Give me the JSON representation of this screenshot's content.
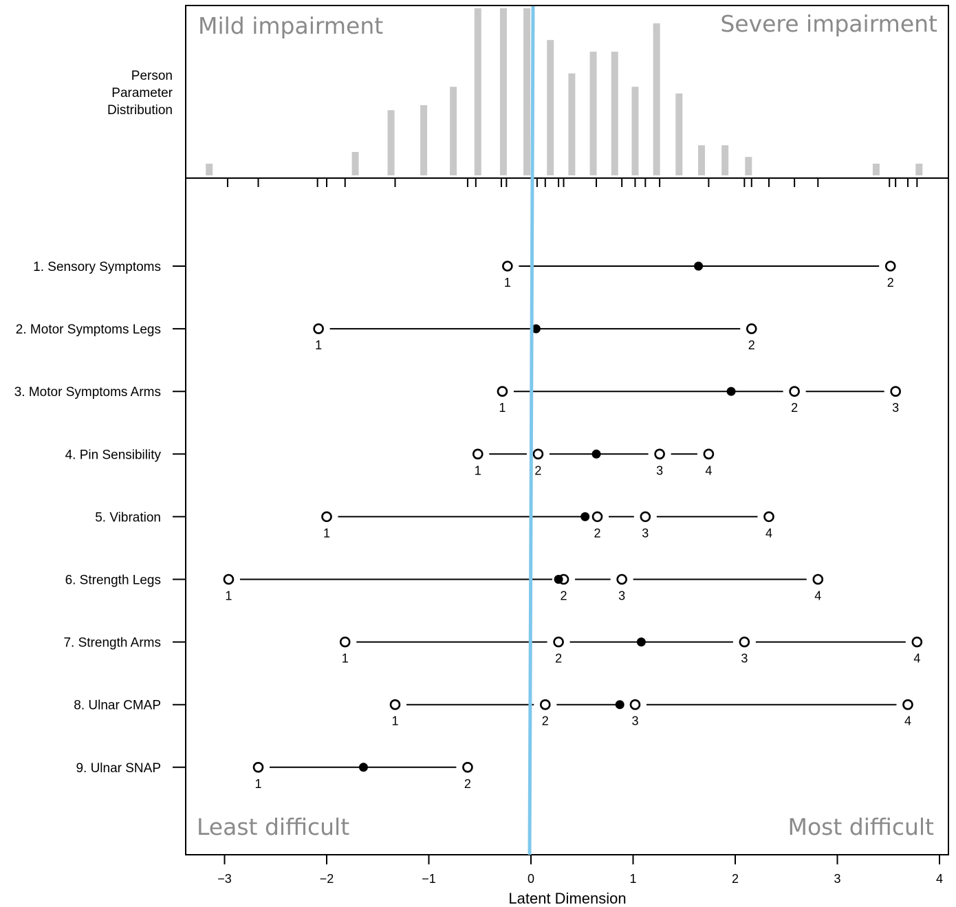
{
  "chart_data": {
    "type": "scatter",
    "title": "",
    "xlabel": "Latent Dimension",
    "xlim": [
      -3.4,
      4.1
    ],
    "x_ticks": [
      -3,
      -2,
      -1,
      0,
      1,
      2,
      3,
      4
    ],
    "x_tick_labels": [
      "−3",
      "−2",
      "−1",
      "0",
      "1",
      "2",
      "3",
      "4"
    ],
    "reference_line": {
      "x": 0,
      "color": "#7ec8ec"
    },
    "histogram": {
      "label_lines": [
        "Person",
        "Parameter",
        "Distribution"
      ],
      "bar_color": "#c8c8c8",
      "bars": [
        {
          "x": -3.15,
          "height": 0.07
        },
        {
          "x": -1.72,
          "height": 0.14
        },
        {
          "x": -1.37,
          "height": 0.39
        },
        {
          "x": -1.05,
          "height": 0.42
        },
        {
          "x": -0.76,
          "height": 0.53
        },
        {
          "x": -0.52,
          "height": 1.0
        },
        {
          "x": -0.27,
          "height": 1.0
        },
        {
          "x": -0.04,
          "height": 1.0
        },
        {
          "x": 0.19,
          "height": 0.81
        },
        {
          "x": 0.4,
          "height": 0.61
        },
        {
          "x": 0.61,
          "height": 0.74
        },
        {
          "x": 0.82,
          "height": 0.74
        },
        {
          "x": 1.02,
          "height": 0.53
        },
        {
          "x": 1.23,
          "height": 0.91
        },
        {
          "x": 1.45,
          "height": 0.49
        },
        {
          "x": 1.67,
          "height": 0.18
        },
        {
          "x": 1.9,
          "height": 0.18
        },
        {
          "x": 2.13,
          "height": 0.11
        },
        {
          "x": 3.38,
          "height": 0.07
        },
        {
          "x": 3.8,
          "height": 0.07
        }
      ]
    },
    "threshold_ticks": [
      -2.97,
      -2.67,
      -2.09,
      -2.0,
      -1.82,
      -1.33,
      -0.62,
      -0.54,
      -0.29,
      -0.24,
      0.06,
      0.14,
      0.27,
      0.32,
      0.64,
      0.89,
      1.02,
      1.12,
      1.26,
      1.74,
      2.09,
      2.16,
      2.33,
      2.58,
      2.81,
      3.51,
      3.57,
      3.69,
      3.78
    ],
    "items": [
      {
        "label": "1. Sensory Symptoms",
        "location": 1.64,
        "thresholds": [
          -0.23,
          3.52
        ],
        "threshold_labels": [
          "1",
          "2"
        ]
      },
      {
        "label": "2. Motor Symptoms Legs",
        "location": 0.05,
        "thresholds": [
          -2.08,
          2.16
        ],
        "threshold_labels": [
          "1",
          "2"
        ]
      },
      {
        "label": "3. Motor Symptoms Arms",
        "location": 1.96,
        "thresholds": [
          -0.28,
          2.58,
          3.57
        ],
        "threshold_labels": [
          "1",
          "2",
          "3"
        ]
      },
      {
        "label": "4. Pin Sensibility",
        "location": 0.64,
        "thresholds": [
          -0.52,
          0.07,
          1.26,
          1.74
        ],
        "threshold_labels": [
          "1",
          "2",
          "3",
          "4"
        ]
      },
      {
        "label": "5. Vibration",
        "location": 0.53,
        "thresholds": [
          -2.0,
          0.65,
          1.12,
          2.33
        ],
        "threshold_labels": [
          "1",
          "2",
          "3",
          "4"
        ]
      },
      {
        "label": "6. Strength Legs",
        "location": 0.27,
        "thresholds": [
          -2.96,
          0.32,
          0.89,
          2.81
        ],
        "threshold_labels": [
          "1",
          "2",
          "3",
          "4"
        ]
      },
      {
        "label": "7. Strength Arms",
        "location": 1.08,
        "thresholds": [
          -1.82,
          0.27,
          2.09,
          3.78
        ],
        "threshold_labels": [
          "1",
          "2",
          "3",
          "4"
        ]
      },
      {
        "label": "8. Ulnar CMAP",
        "location": 0.87,
        "thresholds": [
          -1.33,
          0.14,
          1.02,
          3.69
        ],
        "threshold_labels": [
          "1",
          "2",
          "3",
          "4"
        ]
      },
      {
        "label": "9. Ulnar SNAP",
        "location": -1.64,
        "thresholds": [
          -2.67,
          -0.62
        ],
        "threshold_labels": [
          "1",
          "2"
        ]
      }
    ],
    "annotations": {
      "top_left": "Mild impairment",
      "top_right": "Severe impairment",
      "bottom_left": "Least difficult",
      "bottom_right": "Most difficult"
    }
  }
}
